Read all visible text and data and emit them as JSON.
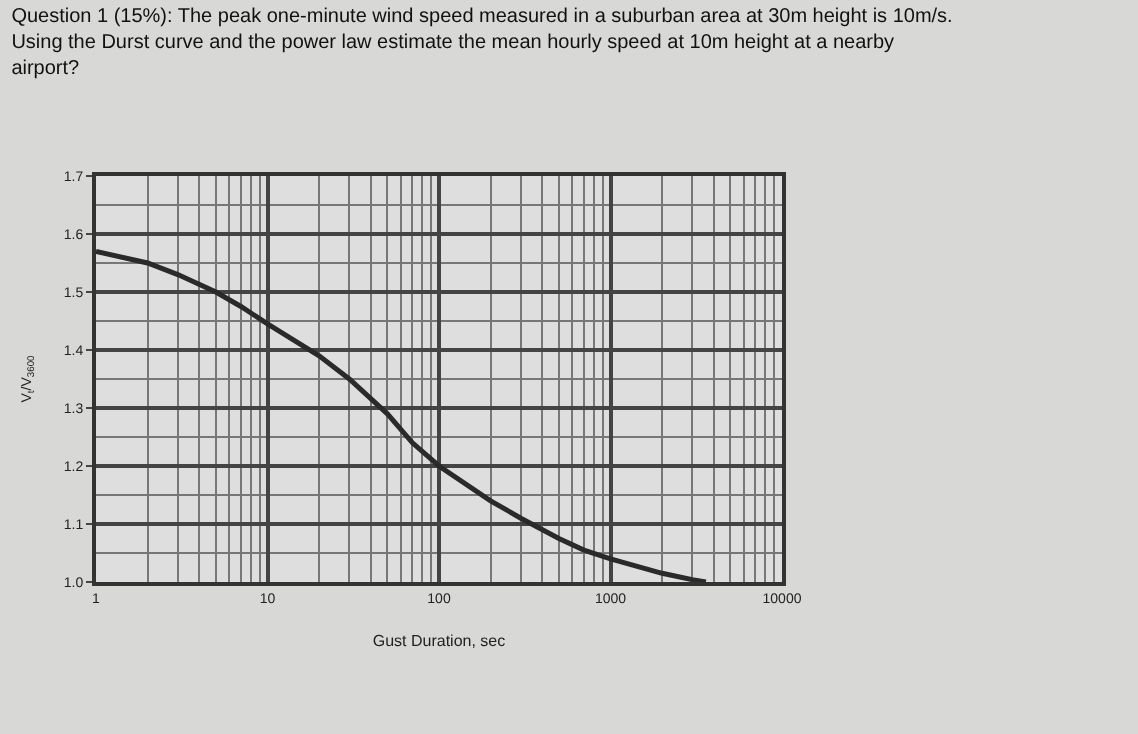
{
  "chart_data": {
    "type": "line",
    "title": "Question 1 (15%): The peak one-minute wind speed measured in a suburban area at 30m height is 10m/s. Using the Durst curve and the power law estimate the mean hourly speed at 10m height at a nearby airport?",
    "xlabel": "Gust Duration, sec",
    "ylabel": "V$_{t}$/V$_{3600}$",
    "x": [
      1,
      2,
      3,
      5,
      7,
      10,
      20,
      30,
      50,
      70,
      100,
      200,
      300,
      500,
      700,
      1000,
      2000,
      3000,
      3600
    ],
    "series": [
      {
        "color": "#2a2a2a",
        "values": [
          1.57,
          1.55,
          1.53,
          1.5,
          1.475,
          1.445,
          1.39,
          1.35,
          1.29,
          1.24,
          1.2,
          1.14,
          1.11,
          1.075,
          1.055,
          1.04,
          1.015,
          1.004,
          1.0
        ]
      }
    ],
    "xlim": [
      1,
      10000
    ],
    "xticks": [
      1,
      10,
      100,
      1000,
      10000
    ],
    "log": "x",
    "ylim": [
      1.0,
      1.7
    ],
    "yticks": [
      {
        "value": 1.0,
        "label": "1.0"
      },
      1.1,
      1.2,
      1.3,
      1.4,
      1.5,
      1.6,
      1.7
    ],
    "grid": true,
    "marker": "none",
    "line_style": "solid"
  }
}
